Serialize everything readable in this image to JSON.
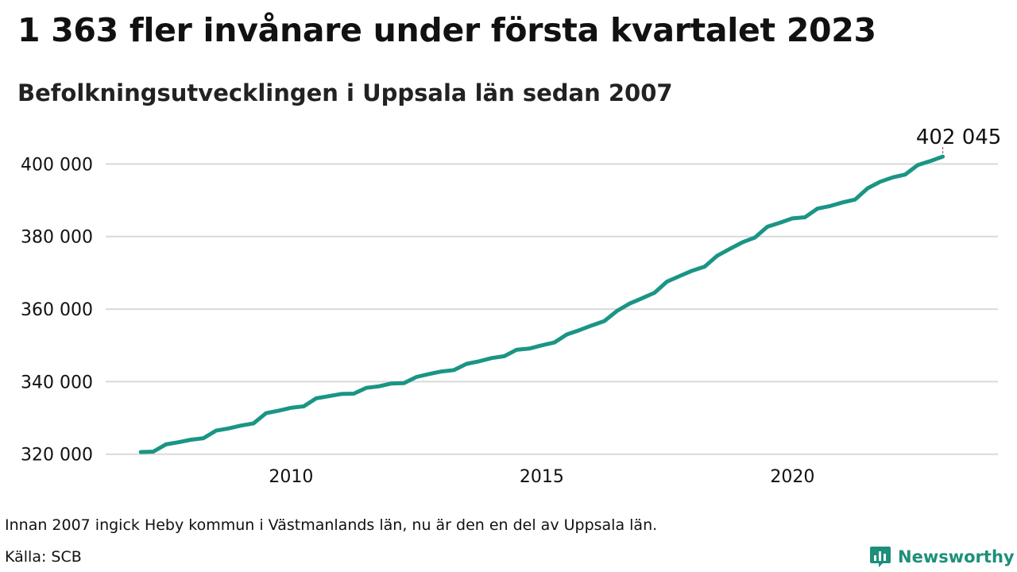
{
  "header": {
    "title": "1 363 fler invånare under första kvartalet 2023",
    "subtitle": "Befolkningsutvecklingen i Uppsala län sedan 2007"
  },
  "footer": {
    "note": "Innan 2007 ingick Heby kommun i Västmanlands län, nu är den en del av Uppsala län.",
    "source": "Källa: SCB",
    "brand": "Newsworthy",
    "brand_color": "#1d8f7a"
  },
  "chart_data": {
    "type": "line",
    "title": "1 363 fler invånare under första kvartalet 2023",
    "subtitle": "Befolkningsutvecklingen i Uppsala län sedan 2007",
    "xlabel": "",
    "ylabel": "",
    "xlim": [
      2006.3,
      2024.1
    ],
    "ylim": [
      316000,
      402500
    ],
    "grid": true,
    "line_color": "#1a9585",
    "yticks": [
      320000,
      340000,
      360000,
      380000,
      400000
    ],
    "ytick_labels": [
      "320 000",
      "340 000",
      "360 000",
      "380 000",
      "400 000"
    ],
    "xticks": [
      2010,
      2015,
      2020
    ],
    "xtick_labels": [
      "2010",
      "2015",
      "2020"
    ],
    "end_label": "402 045",
    "series": [
      {
        "x": [
          2007.0,
          2007.25,
          2007.5,
          2007.75,
          2008.0,
          2008.25,
          2008.5,
          2008.75,
          2009.0,
          2009.25,
          2009.5,
          2009.75,
          2010.0,
          2010.25,
          2010.5,
          2010.75,
          2011.0,
          2011.25,
          2011.5,
          2011.75,
          2012.0,
          2012.25,
          2012.5,
          2012.75,
          2013.0,
          2013.25,
          2013.5,
          2013.75,
          2014.0,
          2014.25,
          2014.5,
          2014.75,
          2015.0,
          2015.25,
          2015.5,
          2015.75,
          2016.0,
          2016.25,
          2016.5,
          2016.75,
          2017.0,
          2017.25,
          2017.5,
          2017.75,
          2018.0,
          2018.25,
          2018.5,
          2018.75,
          2019.0,
          2019.25,
          2019.5,
          2019.75,
          2020.0,
          2020.25,
          2020.5,
          2020.75,
          2021.0,
          2021.25,
          2021.5,
          2021.75,
          2022.0,
          2022.25,
          2022.5,
          2022.75,
          2023.0
        ],
        "values": [
          320600,
          320700,
          322700,
          323300,
          324000,
          324400,
          326500,
          327100,
          327900,
          328500,
          331300,
          332000,
          332800,
          333200,
          335400,
          336000,
          336600,
          336700,
          338300,
          338700,
          339500,
          339600,
          341300,
          342100,
          342800,
          343200,
          344900,
          345600,
          346500,
          347000,
          348800,
          349100,
          350000,
          350800,
          353000,
          354200,
          355500,
          356700,
          359500,
          361500,
          363000,
          364500,
          367600,
          369100,
          370600,
          371700,
          374700,
          376600,
          378400,
          379700,
          382700,
          383800,
          385000,
          385300,
          387700,
          388400,
          389400,
          390200,
          393300,
          395100,
          396300,
          397100,
          399700,
          400800,
          402045
        ]
      }
    ]
  }
}
